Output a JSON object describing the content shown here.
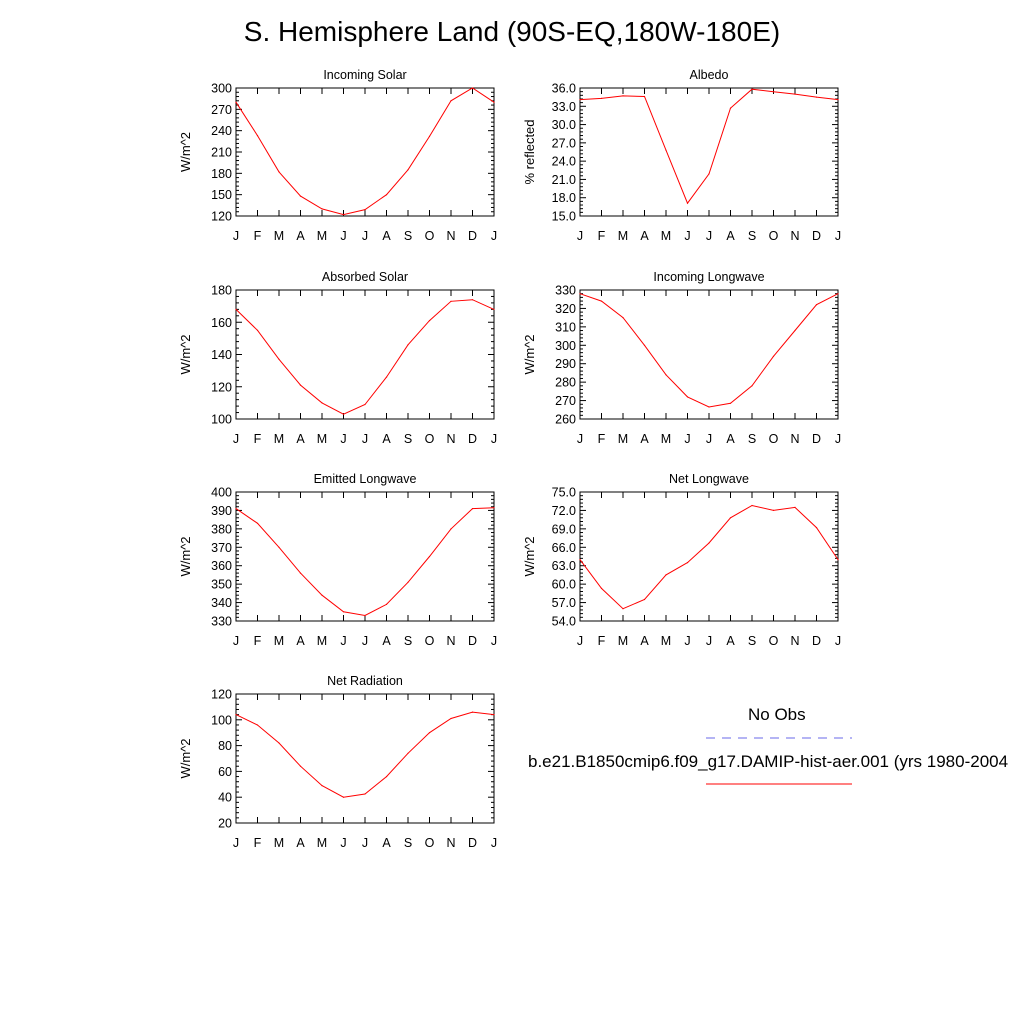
{
  "title": "S. Hemisphere Land (90S-EQ,180W-180E)",
  "months": [
    "J",
    "F",
    "M",
    "A",
    "M",
    "J",
    "J",
    "A",
    "S",
    "O",
    "N",
    "D",
    "J"
  ],
  "colors": {
    "model": "#ff0000",
    "obs": "#6a6ae8"
  },
  "legend": {
    "obs_label": "No Obs",
    "model_label": "b.e21.B1850cmip6.f09_g17.DAMIP-hist-aer.001 (yrs 1980-2004"
  },
  "chart_data": [
    {
      "type": "line",
      "title": "Incoming Solar",
      "ylabel": "W/m^2",
      "ylim": [
        120,
        300
      ],
      "yticks": [
        "120",
        "150",
        "180",
        "210",
        "240",
        "270",
        "300"
      ],
      "x": [
        "J",
        "F",
        "M",
        "A",
        "M",
        "J",
        "J",
        "A",
        "S",
        "O",
        "N",
        "D",
        "J"
      ],
      "series": [
        {
          "values": [
            280,
            233,
            182,
            148,
            130,
            122,
            129,
            150,
            185,
            232,
            282,
            300,
            280
          ]
        }
      ]
    },
    {
      "type": "line",
      "title": "Albedo",
      "ylabel": "% reflected",
      "ylim": [
        15.0,
        36.0
      ],
      "yticks": [
        "15.0",
        "18.0",
        "21.0",
        "24.0",
        "27.0",
        "30.0",
        "33.0",
        "36.0"
      ],
      "x": [
        "J",
        "F",
        "M",
        "A",
        "M",
        "J",
        "J",
        "A",
        "S",
        "O",
        "N",
        "D",
        "J"
      ],
      "series": [
        {
          "values": [
            34.1,
            34.3,
            34.7,
            34.6,
            25.8,
            17.1,
            21.9,
            32.7,
            35.8,
            35.4,
            35.0,
            34.5,
            34.1
          ]
        }
      ]
    },
    {
      "type": "line",
      "title": "Absorbed Solar",
      "ylabel": "W/m^2",
      "ylim": [
        100,
        180
      ],
      "yticks": [
        "100",
        "120",
        "140",
        "160",
        "180"
      ],
      "x": [
        "J",
        "F",
        "M",
        "A",
        "M",
        "J",
        "J",
        "A",
        "S",
        "O",
        "N",
        "D",
        "J"
      ],
      "series": [
        {
          "values": [
            168,
            155,
            137,
            121,
            110,
            103,
            109,
            126,
            146,
            161,
            173,
            174,
            168
          ]
        }
      ]
    },
    {
      "type": "line",
      "title": "Incoming Longwave",
      "ylabel": "W/m^2",
      "ylim": [
        260,
        330
      ],
      "yticks": [
        "260",
        "270",
        "280",
        "290",
        "300",
        "310",
        "320",
        "330"
      ],
      "x": [
        "J",
        "F",
        "M",
        "A",
        "M",
        "J",
        "J",
        "A",
        "S",
        "O",
        "N",
        "D",
        "J"
      ],
      "series": [
        {
          "values": [
            328,
            324,
            315,
            300,
            284,
            272,
            266.5,
            268.5,
            278,
            294,
            308,
            322,
            328
          ]
        }
      ]
    },
    {
      "type": "line",
      "title": "Emitted Longwave",
      "ylabel": "W/m^2",
      "ylim": [
        330,
        400
      ],
      "yticks": [
        "330",
        "340",
        "350",
        "360",
        "370",
        "380",
        "390",
        "400"
      ],
      "x": [
        "J",
        "F",
        "M",
        "A",
        "M",
        "J",
        "J",
        "A",
        "S",
        "O",
        "N",
        "D",
        "J"
      ],
      "series": [
        {
          "values": [
            391,
            383,
            370,
            356,
            344,
            335,
            333,
            339,
            351,
            365,
            380,
            391,
            391.5
          ]
        }
      ]
    },
    {
      "type": "line",
      "title": "Net Longwave",
      "ylabel": "W/m^2",
      "ylim": [
        54.0,
        75.0
      ],
      "yticks": [
        "54.0",
        "57.0",
        "60.0",
        "63.0",
        "66.0",
        "69.0",
        "72.0",
        "75.0"
      ],
      "x": [
        "J",
        "F",
        "M",
        "A",
        "M",
        "J",
        "J",
        "A",
        "S",
        "O",
        "N",
        "D",
        "J"
      ],
      "series": [
        {
          "values": [
            64.0,
            59.3,
            56.0,
            57.5,
            61.5,
            63.5,
            66.7,
            70.8,
            72.8,
            72.0,
            72.5,
            69.2,
            64.0
          ]
        }
      ]
    },
    {
      "type": "line",
      "title": "Net Radiation",
      "ylabel": "W/m^2",
      "ylim": [
        20,
        120
      ],
      "yticks": [
        "20",
        "40",
        "60",
        "80",
        "100",
        "120"
      ],
      "x": [
        "J",
        "F",
        "M",
        "A",
        "M",
        "J",
        "J",
        "A",
        "S",
        "O",
        "N",
        "D",
        "J"
      ],
      "series": [
        {
          "values": [
            104,
            96,
            82,
            64,
            49,
            40,
            42.5,
            56,
            74,
            90,
            101,
            106,
            104
          ]
        }
      ]
    }
  ]
}
